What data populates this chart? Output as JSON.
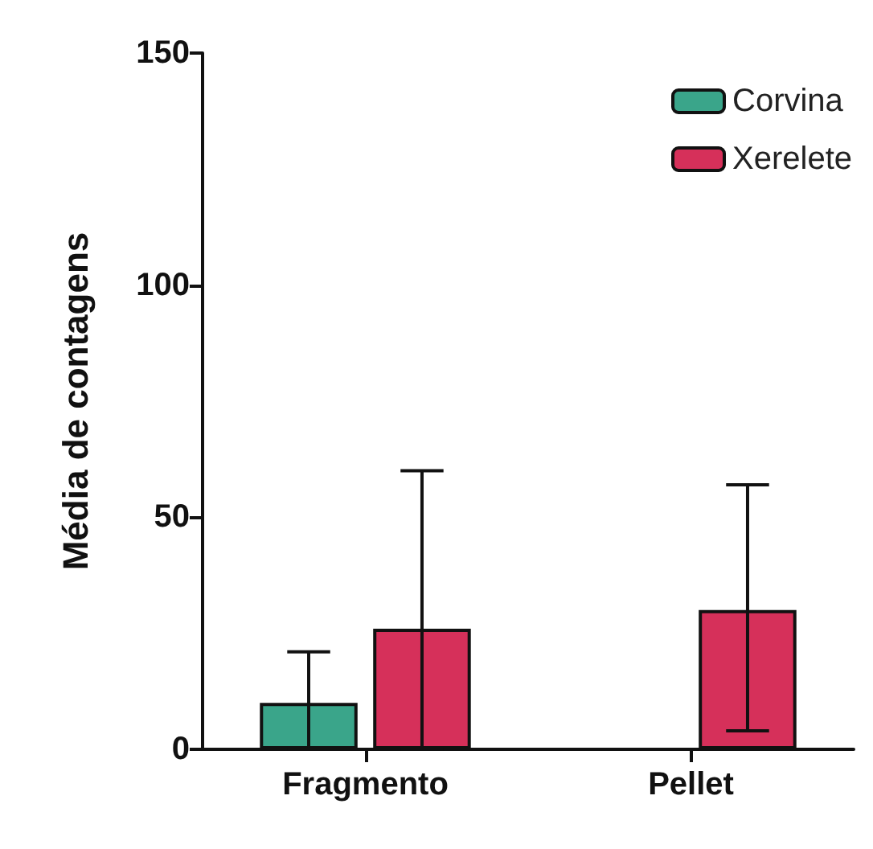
{
  "chart_data": {
    "type": "bar",
    "ylabel": "Média de contagens",
    "categories": [
      "Fragmento",
      "Pellet"
    ],
    "series": [
      {
        "name": "Corvina",
        "color": "#3aa58a",
        "values": [
          10,
          null
        ],
        "errors": [
          [
            0,
            21
          ],
          null
        ]
      },
      {
        "name": "Xerelete",
        "color": "#d6305a",
        "values": [
          26,
          30
        ],
        "errors": [
          [
            0,
            60
          ],
          [
            4,
            57
          ]
        ]
      }
    ],
    "ylim": [
      0,
      150
    ],
    "yticks": [
      0,
      50,
      100,
      150
    ],
    "grid": false,
    "legend": "top right"
  }
}
